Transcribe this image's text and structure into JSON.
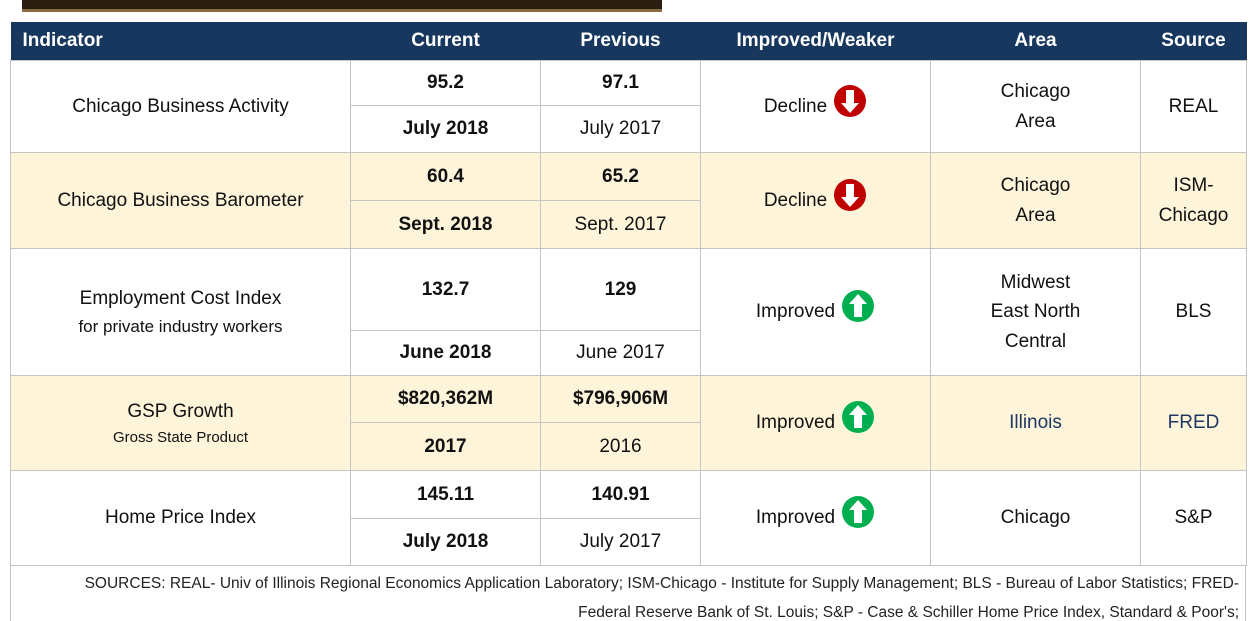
{
  "table": {
    "header": [
      "Indicator",
      "Current",
      "Previous",
      "Improved/Weaker",
      "Area",
      "Source"
    ],
    "rows": [
      {
        "indicator": "Chicago Business Activity",
        "current": "95.2",
        "current_date": "July 2018",
        "previous": "97.1",
        "previous_date": "July  2017",
        "change": "Decline",
        "area": [
          "Chicago",
          "Area"
        ],
        "source": [
          "REAL"
        ]
      },
      {
        "indicator": "Chicago Business Barometer",
        "current": "60.4",
        "current_date": "Sept. 2018",
        "previous": "65.2",
        "previous_date": "Sept. 2017",
        "change": "Decline",
        "area": [
          "Chicago",
          "Area"
        ],
        "source": [
          "ISM-",
          "Chicago"
        ]
      },
      {
        "indicator": "Employment Cost Index",
        "subtitle": "for private industry workers",
        "current": "132.7",
        "current_date": "June 2018",
        "previous": "129",
        "previous_date": "June 2017",
        "change": "Improved",
        "area": [
          "Midwest",
          "East North",
          "Central"
        ],
        "source": [
          "BLS"
        ]
      },
      {
        "indicator": "GSP Growth",
        "subtitle": "Gross State Product",
        "current": "$820,362M",
        "current_date": "2017",
        "previous": "$796,906M",
        "previous_date": "2016",
        "change": "Improved",
        "area": [
          "Illinois"
        ],
        "source": [
          "FRED"
        ]
      },
      {
        "indicator": "Home Price Index",
        "current": "145.11",
        "current_date": "July 2018",
        "previous": "140.91",
        "previous_date": "July 2017",
        "change": "Improved",
        "area": [
          "Chicago"
        ],
        "source": [
          "S&P"
        ]
      }
    ],
    "footnote": "SOURCES: REAL- Univ of Illinois Regional Economics Application Laboratory; ISM-Chicago - Institute for Supply Management; BLS -  Bureau of Labor Statistics; FRED- Federal Reserve Bank of St. Louis;  S&P - Case & Schiller Home Price Index, Standard & Poor's;"
  }
}
